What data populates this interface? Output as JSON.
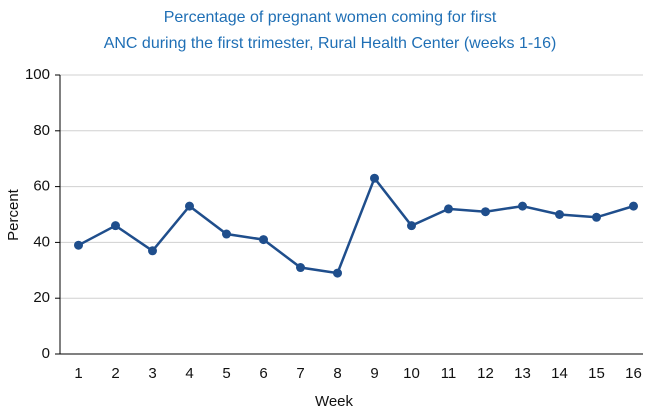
{
  "chart_data": {
    "type": "line",
    "title": [
      "Percentage of pregnant women coming for first",
      "ANC during the first trimester, Rural Health Center (weeks 1-16)"
    ],
    "x_label": "Week",
    "y_label": "Percent",
    "categories": [
      "1",
      "2",
      "3",
      "4",
      "5",
      "6",
      "7",
      "8",
      "9",
      "10",
      "11",
      "12",
      "13",
      "14",
      "15",
      "16"
    ],
    "series": [
      {
        "name": "Percent",
        "color": "#1f4e8c",
        "values": [
          39,
          46,
          37,
          53,
          43,
          41,
          31,
          29,
          63,
          46,
          52,
          51,
          53,
          50,
          49,
          53
        ]
      }
    ],
    "ylim": [
      0,
      100
    ],
    "yticks": [
      0,
      20,
      40,
      60,
      80,
      100
    ],
    "grid": true
  }
}
